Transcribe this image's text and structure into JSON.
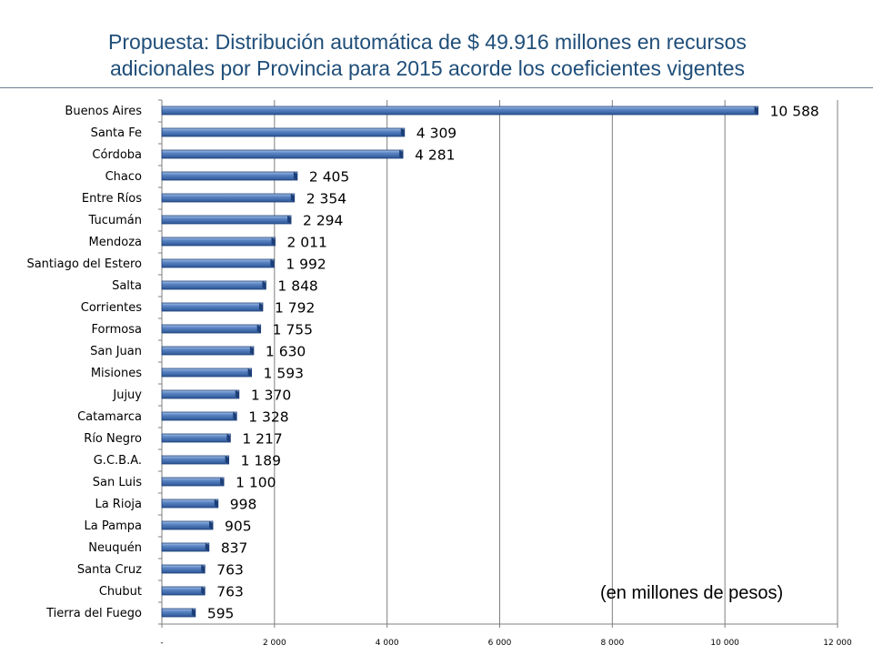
{
  "slide": {
    "title_line1": "Propuesta: Distribución automática de $ 49.916 millones en recursos",
    "title_line2": "adicionales por Provincia para 2015 acorde los coeficientes vigentes",
    "unit_note": "(en millones de pesos)"
  },
  "chart_data": {
    "type": "bar",
    "orientation": "horizontal",
    "categories": [
      "Buenos Aires",
      "Santa Fe",
      "Córdoba",
      "Chaco",
      "Entre Ríos",
      "Tucumán",
      "Mendoza",
      "Santiago del Estero",
      "Salta",
      "Corrientes",
      "Formosa",
      "San Juan",
      "Misiones",
      "Jujuy",
      "Catamarca",
      "Río Negro",
      "G.C.B.A.",
      "San Luis",
      "La Rioja",
      "La Pampa",
      "Neuquén",
      "Santa Cruz",
      "Chubut",
      "Tierra del Fuego"
    ],
    "values": [
      10588,
      4309,
      4281,
      2405,
      2354,
      2294,
      2011,
      1992,
      1848,
      1792,
      1755,
      1630,
      1593,
      1370,
      1328,
      1217,
      1189,
      1100,
      998,
      905,
      837,
      763,
      763,
      595
    ],
    "data_labels": [
      "10 588",
      "4 309",
      "4 281",
      "2 405",
      "2 354",
      "2 294",
      "2 011",
      "1 992",
      "1 848",
      "1 792",
      "1 755",
      "1 630",
      "1 593",
      "1 370",
      "1 328",
      "1 217",
      "1 189",
      "1 100",
      "998",
      "905",
      "837",
      "763",
      "763",
      "595"
    ],
    "xlim": [
      0,
      12000
    ],
    "x_ticks": [
      0,
      2000,
      4000,
      6000,
      8000,
      10000,
      12000
    ],
    "x_tick_labels": [
      "-",
      "2 000",
      "4 000",
      "6 000",
      "8 000",
      "10 000",
      "12 000"
    ],
    "grid": true,
    "bar_color": "#3d6aab",
    "bar_edge_color": "#1c3f78"
  }
}
